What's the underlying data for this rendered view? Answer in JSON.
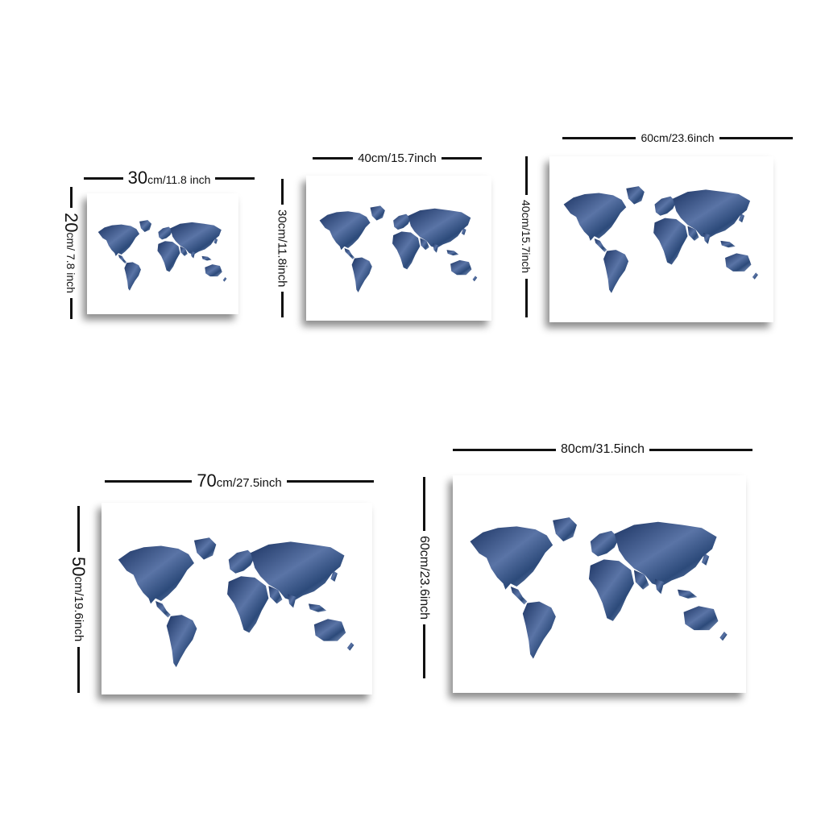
{
  "map_color": "#2c4a7a",
  "map_color_light": "#7d93bd",
  "frames": [
    {
      "id": "30x20",
      "width_parts": [
        "30",
        "cm/",
        "11.8",
        " inch"
      ],
      "height_parts": [
        "20",
        "cm/",
        " 7.8 inch"
      ]
    },
    {
      "id": "40x30",
      "width_label": "40cm/15.7inch",
      "height_label": "30cm/11.8inch"
    },
    {
      "id": "60x40",
      "width_label": "60cm/23.6inch",
      "height_label": "40cm/15.7inch"
    },
    {
      "id": "70x50",
      "width_parts": [
        "70",
        "cm/",
        "27.5",
        "inch"
      ],
      "height_parts": [
        "50",
        "cm/",
        "19.6inch"
      ]
    },
    {
      "id": "80x60",
      "width_label": "80cm/31.5inch",
      "height_label": "60cm/23.6inch"
    }
  ]
}
